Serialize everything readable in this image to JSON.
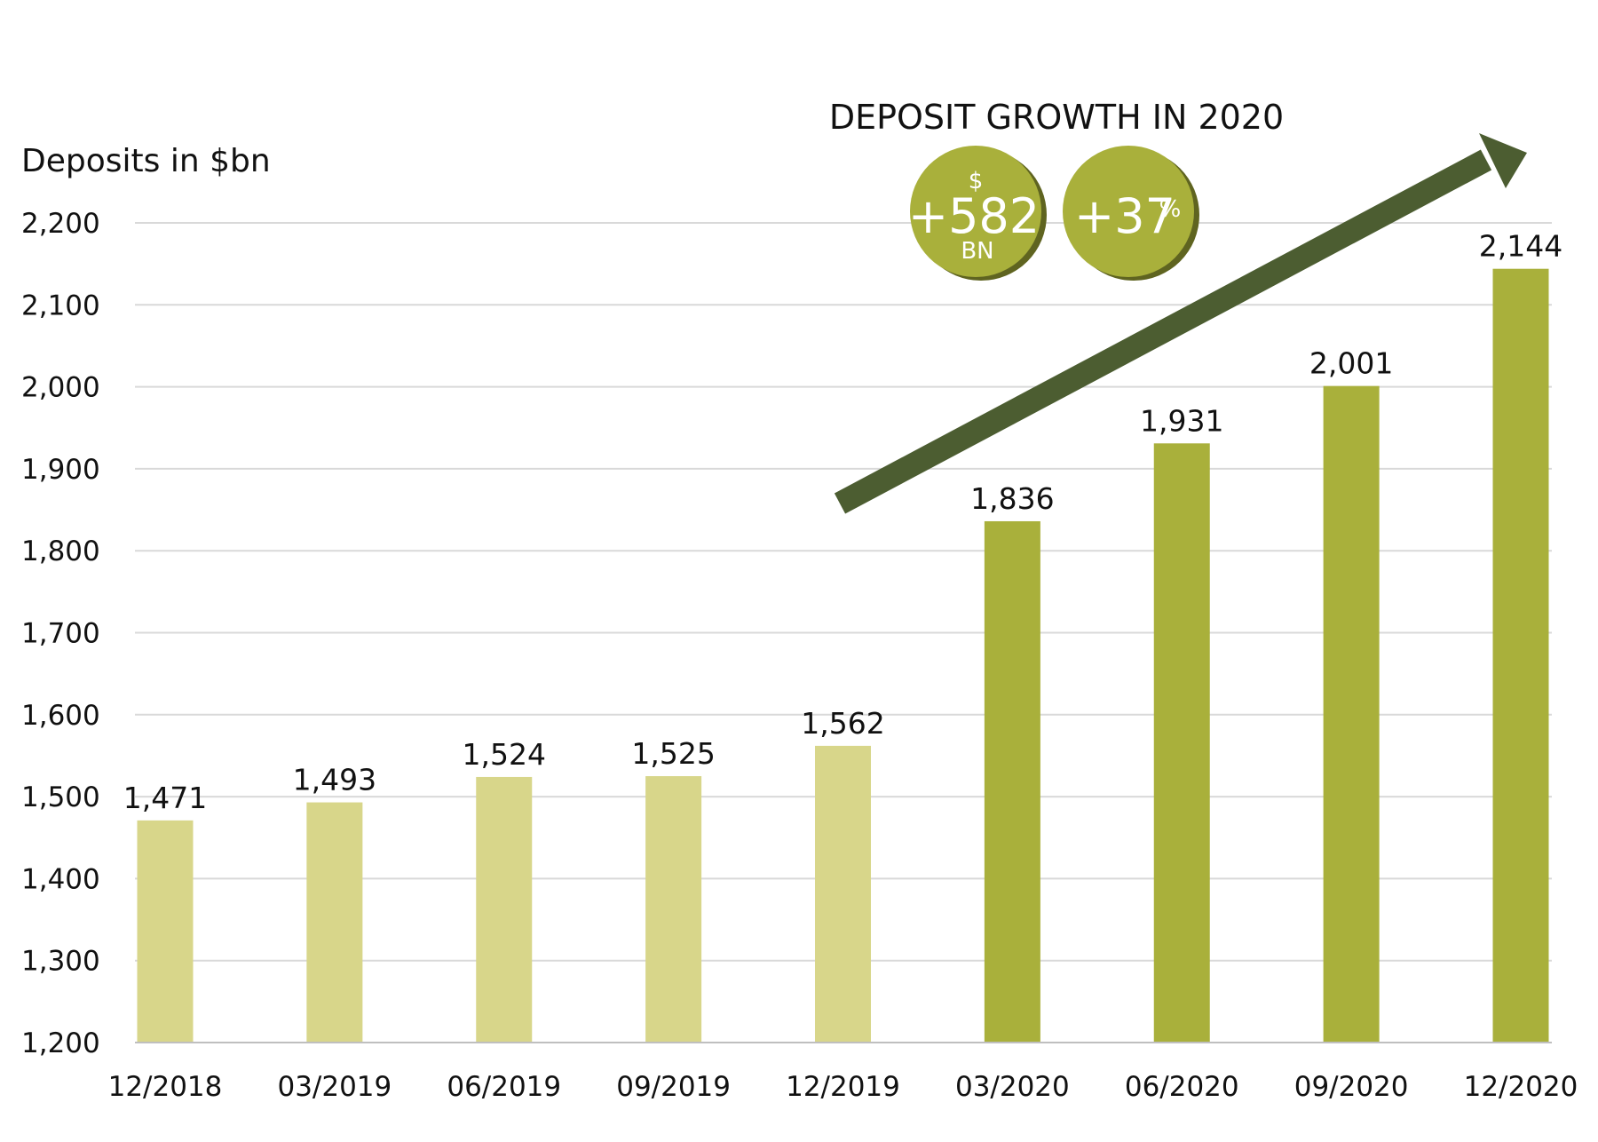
{
  "chart_data": {
    "type": "bar",
    "ylabel": "Deposits in $bn",
    "xlabel": "",
    "ylim": [
      1200,
      2200
    ],
    "yticks": [
      1200,
      1300,
      1400,
      1500,
      1600,
      1700,
      1800,
      1900,
      2000,
      2100,
      2200
    ],
    "ytick_labels": [
      "1,200",
      "1,300",
      "1,400",
      "1,500",
      "1,600",
      "1,700",
      "1,800",
      "1,900",
      "2,000",
      "2,100",
      "2,200"
    ],
    "categories": [
      "12/2018",
      "03/2019",
      "06/2019",
      "09/2019",
      "12/2019",
      "03/2020",
      "06/2020",
      "09/2020",
      "12/2020"
    ],
    "values": [
      1471,
      1493,
      1524,
      1525,
      1562,
      1836,
      1931,
      2001,
      2144
    ],
    "value_labels": [
      "1,471",
      "1,493",
      "1,524",
      "1,525",
      "1,562",
      "1,836",
      "1,931",
      "2,001",
      "2,144"
    ],
    "grid": true,
    "colors": {
      "bar_2019": "#d8d68a",
      "bar_2020": "#a9b03b",
      "arrow": "#4c5d31",
      "gridline": "#d9d9d9",
      "badge": "#a9b03b",
      "badge_shadow": "#5f6420"
    },
    "annotation": {
      "headline": "DEPOSIT  GROWTH IN 2020",
      "badge_amount": {
        "prefix": "$",
        "value": "+582",
        "suffix": "BN"
      },
      "badge_percent": {
        "value": "+37",
        "suffix": "%"
      }
    }
  }
}
